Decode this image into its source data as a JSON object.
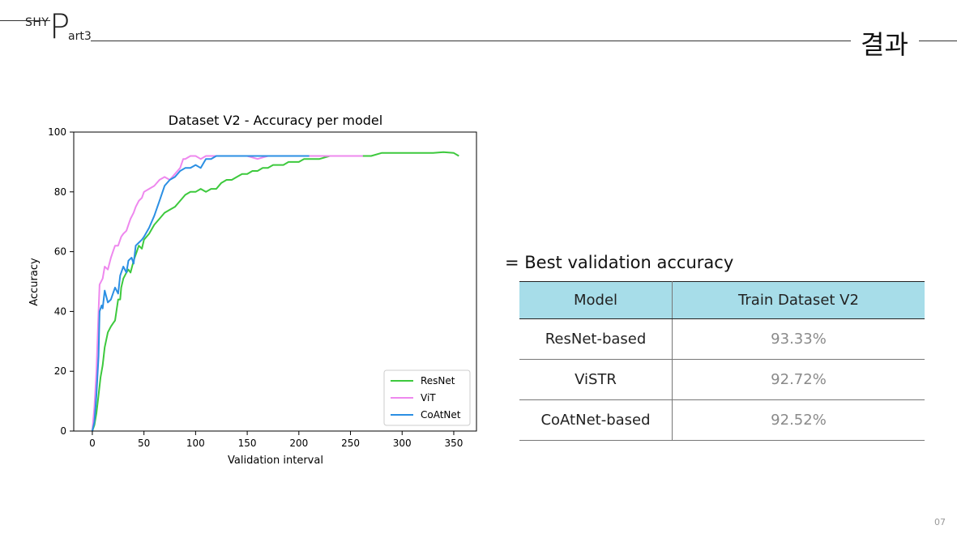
{
  "header": {
    "brand": "SHY",
    "part_letter": "P",
    "part_rest": "art3",
    "section_title": "결과"
  },
  "page_number": "07",
  "chart_data": {
    "type": "line",
    "title": "Dataset V2 - Accuracy per model",
    "xlabel": "Validation interval",
    "ylabel": "Accuracy",
    "xlim": [
      -18,
      372
    ],
    "ylim": [
      0,
      100
    ],
    "xticks": [
      0,
      50,
      100,
      150,
      200,
      250,
      300,
      350
    ],
    "yticks": [
      0,
      20,
      40,
      60,
      80,
      100
    ],
    "grid": false,
    "legend_position": "bottom-right",
    "series": [
      {
        "name": "ResNet",
        "color": "#3dc93d",
        "points": [
          [
            0,
            0
          ],
          [
            2,
            2
          ],
          [
            4,
            6
          ],
          [
            6,
            12
          ],
          [
            8,
            18
          ],
          [
            10,
            22
          ],
          [
            12,
            28
          ],
          [
            15,
            33
          ],
          [
            18,
            35
          ],
          [
            20,
            36
          ],
          [
            22,
            37
          ],
          [
            25,
            44
          ],
          [
            27,
            44
          ],
          [
            28,
            48
          ],
          [
            30,
            51
          ],
          [
            33,
            53
          ],
          [
            35,
            54
          ],
          [
            37,
            53
          ],
          [
            40,
            57
          ],
          [
            42,
            59
          ],
          [
            45,
            62
          ],
          [
            48,
            61
          ],
          [
            50,
            64
          ],
          [
            55,
            66
          ],
          [
            60,
            69
          ],
          [
            65,
            71
          ],
          [
            70,
            73
          ],
          [
            75,
            74
          ],
          [
            80,
            75
          ],
          [
            85,
            77
          ],
          [
            90,
            79
          ],
          [
            95,
            80
          ],
          [
            100,
            80
          ],
          [
            105,
            81
          ],
          [
            110,
            80
          ],
          [
            115,
            81
          ],
          [
            120,
            81
          ],
          [
            125,
            83
          ],
          [
            130,
            84
          ],
          [
            135,
            84
          ],
          [
            140,
            85
          ],
          [
            145,
            86
          ],
          [
            150,
            86
          ],
          [
            155,
            87
          ],
          [
            160,
            87
          ],
          [
            165,
            88
          ],
          [
            170,
            88
          ],
          [
            175,
            89
          ],
          [
            180,
            89
          ],
          [
            185,
            89
          ],
          [
            190,
            90
          ],
          [
            195,
            90
          ],
          [
            200,
            90
          ],
          [
            205,
            91
          ],
          [
            210,
            91
          ],
          [
            215,
            91
          ],
          [
            220,
            91
          ],
          [
            230,
            92
          ],
          [
            240,
            92
          ],
          [
            250,
            92
          ],
          [
            260,
            92
          ],
          [
            270,
            92
          ],
          [
            280,
            93
          ],
          [
            290,
            93
          ],
          [
            300,
            93
          ],
          [
            310,
            93
          ],
          [
            320,
            93
          ],
          [
            330,
            93
          ],
          [
            340,
            93.3
          ],
          [
            350,
            93
          ],
          [
            355,
            92
          ]
        ]
      },
      {
        "name": "ViT",
        "color": "#ee88ee",
        "points": [
          [
            0,
            0
          ],
          [
            2,
            8
          ],
          [
            4,
            20
          ],
          [
            6,
            40
          ],
          [
            7,
            49
          ],
          [
            10,
            51
          ],
          [
            12,
            55
          ],
          [
            15,
            54
          ],
          [
            18,
            58
          ],
          [
            20,
            60
          ],
          [
            22,
            62
          ],
          [
            25,
            62
          ],
          [
            28,
            65
          ],
          [
            30,
            66
          ],
          [
            33,
            67
          ],
          [
            35,
            69
          ],
          [
            37,
            71
          ],
          [
            40,
            73
          ],
          [
            42,
            75
          ],
          [
            45,
            77
          ],
          [
            48,
            78
          ],
          [
            50,
            80
          ],
          [
            55,
            81
          ],
          [
            60,
            82
          ],
          [
            65,
            84
          ],
          [
            70,
            85
          ],
          [
            75,
            84
          ],
          [
            80,
            86
          ],
          [
            85,
            88
          ],
          [
            88,
            91
          ],
          [
            90,
            91
          ],
          [
            95,
            92
          ],
          [
            100,
            92
          ],
          [
            105,
            91
          ],
          [
            110,
            92
          ],
          [
            115,
            92
          ],
          [
            120,
            92
          ],
          [
            130,
            92
          ],
          [
            140,
            92
          ],
          [
            150,
            92
          ],
          [
            160,
            91
          ],
          [
            170,
            92
          ],
          [
            180,
            92
          ],
          [
            190,
            92
          ],
          [
            200,
            92
          ],
          [
            210,
            92
          ],
          [
            220,
            92
          ],
          [
            230,
            92
          ],
          [
            240,
            92
          ],
          [
            250,
            92
          ],
          [
            262,
            92
          ]
        ]
      },
      {
        "name": "CoAtNet",
        "color": "#2b8fe3",
        "points": [
          [
            0,
            0
          ],
          [
            2,
            3
          ],
          [
            4,
            12
          ],
          [
            6,
            25
          ],
          [
            7,
            40
          ],
          [
            9,
            42
          ],
          [
            10,
            41
          ],
          [
            12,
            47
          ],
          [
            15,
            43
          ],
          [
            18,
            44
          ],
          [
            20,
            46
          ],
          [
            22,
            48
          ],
          [
            25,
            46
          ],
          [
            27,
            52
          ],
          [
            30,
            55
          ],
          [
            33,
            53
          ],
          [
            35,
            57
          ],
          [
            38,
            58
          ],
          [
            40,
            56
          ],
          [
            42,
            62
          ],
          [
            45,
            63
          ],
          [
            48,
            64
          ],
          [
            50,
            65
          ],
          [
            55,
            68
          ],
          [
            60,
            72
          ],
          [
            65,
            77
          ],
          [
            70,
            82
          ],
          [
            75,
            84
          ],
          [
            80,
            85
          ],
          [
            85,
            87
          ],
          [
            90,
            88
          ],
          [
            95,
            88
          ],
          [
            100,
            89
          ],
          [
            105,
            88
          ],
          [
            110,
            91
          ],
          [
            115,
            91
          ],
          [
            120,
            92
          ],
          [
            130,
            92
          ],
          [
            140,
            92
          ],
          [
            150,
            92
          ],
          [
            160,
            92
          ],
          [
            170,
            92
          ],
          [
            180,
            92
          ],
          [
            190,
            92
          ],
          [
            200,
            92
          ],
          [
            210,
            92
          ]
        ]
      }
    ]
  },
  "best": {
    "label": "= Best validation accuracy",
    "headers": [
      "Model",
      "Train Dataset V2"
    ],
    "rows": [
      {
        "model": "ResNet-based",
        "value": "93.33%"
      },
      {
        "model": "ViSTR",
        "value": "92.72%"
      },
      {
        "model": "CoAtNet-based",
        "value": "92.52%"
      }
    ]
  }
}
